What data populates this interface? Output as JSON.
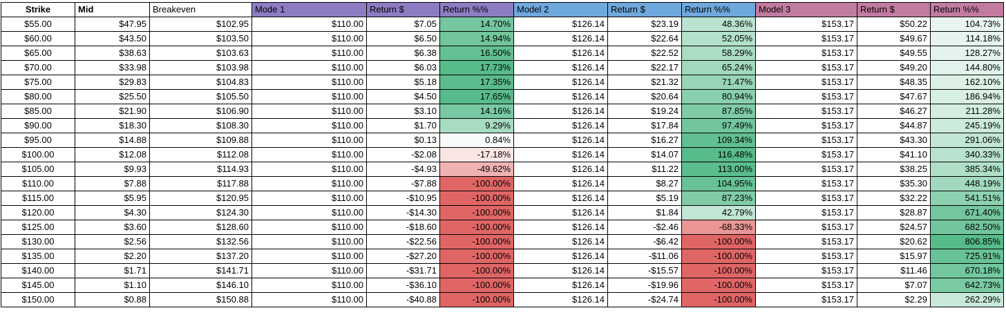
{
  "colors": {
    "model1_header": "#8e7cc3",
    "model2_header": "#6fa8dc",
    "model3_header": "#c27ba0",
    "positive_scale": "#57bb8a",
    "negative_scale": "#e06666"
  },
  "headers": [
    {
      "label": "Strike",
      "bg": "#ffffff",
      "cls": "hdr-strike"
    },
    {
      "label": "Mid",
      "bg": "#ffffff",
      "cls": "hdr-mid"
    },
    {
      "label": "Breakeven",
      "bg": "#ffffff",
      "cls": "hdr-left"
    },
    {
      "label": "Mode 1",
      "bg": "#8e7cc3",
      "cls": "hdr-left"
    },
    {
      "label": "Return $",
      "bg": "#8e7cc3",
      "cls": "hdr-left"
    },
    {
      "label": "Return %%",
      "bg": "#8e7cc3",
      "cls": "hdr-left"
    },
    {
      "label": "Model 2",
      "bg": "#6fa8dc",
      "cls": "hdr-left"
    },
    {
      "label": "Return $",
      "bg": "#6fa8dc",
      "cls": "hdr-left"
    },
    {
      "label": "Return %%",
      "bg": "#6fa8dc",
      "cls": "hdr-left"
    },
    {
      "label": "Model 3",
      "bg": "#c27ba0",
      "cls": "hdr-left"
    },
    {
      "label": "Return $",
      "bg": "#c27ba0",
      "cls": "hdr-left"
    },
    {
      "label": "Return %%",
      "bg": "#c27ba0",
      "cls": "hdr-left"
    }
  ],
  "rows": [
    {
      "strike": "$55.00",
      "mid": "$47.95",
      "breakeven": "$102.95",
      "m1": "$110.00",
      "r1d": "$7.05",
      "r1p": "14.70%",
      "m2": "$126.14",
      "r2d": "$23.19",
      "r2p": "48.36%",
      "m3": "$153.17",
      "r3d": "$50.22",
      "r3p": "104.73%"
    },
    {
      "strike": "$60.00",
      "mid": "$43.50",
      "breakeven": "$103.50",
      "m1": "$110.00",
      "r1d": "$6.50",
      "r1p": "14.94%",
      "m2": "$126.14",
      "r2d": "$22.64",
      "r2p": "52.05%",
      "m3": "$153.17",
      "r3d": "$49.67",
      "r3p": "114.18%"
    },
    {
      "strike": "$65.00",
      "mid": "$38.63",
      "breakeven": "$103.63",
      "m1": "$110.00",
      "r1d": "$6.38",
      "r1p": "16.50%",
      "m2": "$126.14",
      "r2d": "$22.52",
      "r2p": "58.29%",
      "m3": "$153.17",
      "r3d": "$49.55",
      "r3p": "128.27%"
    },
    {
      "strike": "$70.00",
      "mid": "$33.98",
      "breakeven": "$103.98",
      "m1": "$110.00",
      "r1d": "$6.03",
      "r1p": "17.73%",
      "m2": "$126.14",
      "r2d": "$22.17",
      "r2p": "65.24%",
      "m3": "$153.17",
      "r3d": "$49.20",
      "r3p": "144.80%"
    },
    {
      "strike": "$75.00",
      "mid": "$29.83",
      "breakeven": "$104.83",
      "m1": "$110.00",
      "r1d": "$5.18",
      "r1p": "17.35%",
      "m2": "$126.14",
      "r2d": "$21.32",
      "r2p": "71.47%",
      "m3": "$153.17",
      "r3d": "$48.35",
      "r3p": "162.10%"
    },
    {
      "strike": "$80.00",
      "mid": "$25.50",
      "breakeven": "$105.50",
      "m1": "$110.00",
      "r1d": "$4.50",
      "r1p": "17.65%",
      "m2": "$126.14",
      "r2d": "$20.64",
      "r2p": "80.94%",
      "m3": "$153.17",
      "r3d": "$47.67",
      "r3p": "186.94%"
    },
    {
      "strike": "$85.00",
      "mid": "$21.90",
      "breakeven": "$106.90",
      "m1": "$110.00",
      "r1d": "$3.10",
      "r1p": "14.16%",
      "m2": "$126.14",
      "r2d": "$19.24",
      "r2p": "87.85%",
      "m3": "$153.17",
      "r3d": "$46.27",
      "r3p": "211.28%"
    },
    {
      "strike": "$90.00",
      "mid": "$18.30",
      "breakeven": "$108.30",
      "m1": "$110.00",
      "r1d": "$1.70",
      "r1p": "9.29%",
      "m2": "$126.14",
      "r2d": "$17.84",
      "r2p": "97.49%",
      "m3": "$153.17",
      "r3d": "$44.87",
      "r3p": "245.19%"
    },
    {
      "strike": "$95.00",
      "mid": "$14.88",
      "breakeven": "$109.88",
      "m1": "$110.00",
      "r1d": "$0.13",
      "r1p": "0.84%",
      "m2": "$126.14",
      "r2d": "$16.27",
      "r2p": "109.34%",
      "m3": "$153.17",
      "r3d": "$43.30",
      "r3p": "291.06%"
    },
    {
      "strike": "$100.00",
      "mid": "$12.08",
      "breakeven": "$112.08",
      "m1": "$110.00",
      "r1d": "-$2.08",
      "r1p": "-17.18%",
      "m2": "$126.14",
      "r2d": "$14.07",
      "r2p": "116.48%",
      "m3": "$153.17",
      "r3d": "$41.10",
      "r3p": "340.33%"
    },
    {
      "strike": "$105.00",
      "mid": "$9.93",
      "breakeven": "$114.93",
      "m1": "$110.00",
      "r1d": "-$4.93",
      "r1p": "-49.62%",
      "m2": "$126.14",
      "r2d": "$11.22",
      "r2p": "113.00%",
      "m3": "$153.17",
      "r3d": "$38.25",
      "r3p": "385.34%"
    },
    {
      "strike": "$110.00",
      "mid": "$7.88",
      "breakeven": "$117.88",
      "m1": "$110.00",
      "r1d": "-$7.88",
      "r1p": "-100.00%",
      "m2": "$126.14",
      "r2d": "$8.27",
      "r2p": "104.95%",
      "m3": "$153.17",
      "r3d": "$35.30",
      "r3p": "448.19%"
    },
    {
      "strike": "$115.00",
      "mid": "$5.95",
      "breakeven": "$120.95",
      "m1": "$110.00",
      "r1d": "-$10.95",
      "r1p": "-100.00%",
      "m2": "$126.14",
      "r2d": "$5.19",
      "r2p": "87.23%",
      "m3": "$153.17",
      "r3d": "$32.22",
      "r3p": "541.51%"
    },
    {
      "strike": "$120.00",
      "mid": "$4.30",
      "breakeven": "$124.30",
      "m1": "$110.00",
      "r1d": "-$14.30",
      "r1p": "-100.00%",
      "m2": "$126.14",
      "r2d": "$1.84",
      "r2p": "42.79%",
      "m3": "$153.17",
      "r3d": "$28.87",
      "r3p": "671.40%"
    },
    {
      "strike": "$125.00",
      "mid": "$3.60",
      "breakeven": "$128.60",
      "m1": "$110.00",
      "r1d": "-$18.60",
      "r1p": "-100.00%",
      "m2": "$126.14",
      "r2d": "-$2.46",
      "r2p": "-68.33%",
      "m3": "$153.17",
      "r3d": "$24.57",
      "r3p": "682.50%"
    },
    {
      "strike": "$130.00",
      "mid": "$2.56",
      "breakeven": "$132.56",
      "m1": "$110.00",
      "r1d": "-$22.56",
      "r1p": "-100.00%",
      "m2": "$126.14",
      "r2d": "-$6.42",
      "r2p": "-100.00%",
      "m3": "$153.17",
      "r3d": "$20.62",
      "r3p": "806.85%"
    },
    {
      "strike": "$135.00",
      "mid": "$2.20",
      "breakeven": "$137.20",
      "m1": "$110.00",
      "r1d": "-$27.20",
      "r1p": "-100.00%",
      "m2": "$126.14",
      "r2d": "-$11.06",
      "r2p": "-100.00%",
      "m3": "$153.17",
      "r3d": "$15.97",
      "r3p": "725.91%"
    },
    {
      "strike": "$140.00",
      "mid": "$1.71",
      "breakeven": "$141.71",
      "m1": "$110.00",
      "r1d": "-$31.71",
      "r1p": "-100.00%",
      "m2": "$126.14",
      "r2d": "-$15.57",
      "r2p": "-100.00%",
      "m3": "$153.17",
      "r3d": "$11.46",
      "r3p": "670.18%"
    },
    {
      "strike": "$145.00",
      "mid": "$1.10",
      "breakeven": "$146.10",
      "m1": "$110.00",
      "r1d": "-$36.10",
      "r1p": "-100.00%",
      "m2": "$126.14",
      "r2d": "-$19.96",
      "r2p": "-100.00%",
      "m3": "$153.17",
      "r3d": "$7.07",
      "r3p": "642.73%"
    },
    {
      "strike": "$150.00",
      "mid": "$0.88",
      "breakeven": "$150.88",
      "m1": "$110.00",
      "r1d": "-$40.88",
      "r1p": "-100.00%",
      "m2": "$126.14",
      "r2d": "-$24.74",
      "r2p": "-100.00%",
      "m3": "$153.17",
      "r3d": "$2.29",
      "r3p": "262.29%"
    }
  ]
}
